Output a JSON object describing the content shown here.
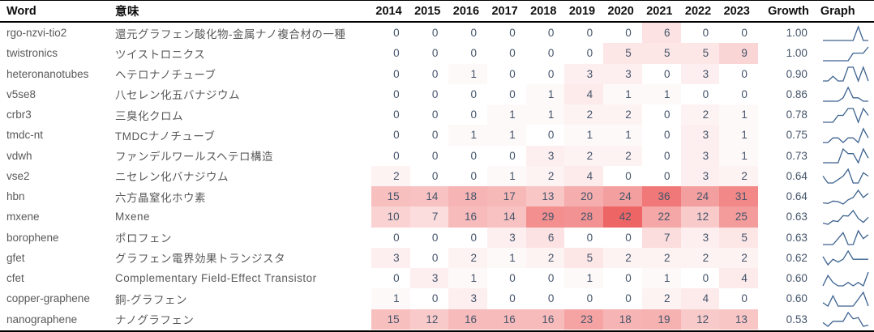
{
  "colors": {
    "heat_max_color": "#ee6565",
    "background": "#ffffff",
    "header_text": "#0f0f0f",
    "body_text": "#595959",
    "number_text": "#44546a",
    "border": "#000000",
    "sparkline": "#3d628f"
  },
  "header": {
    "word": "Word",
    "meaning": "意味",
    "growth": "Growth",
    "graph": "Graph"
  },
  "chart_data": {
    "type": "table",
    "columns": [
      "Word",
      "意味",
      "2014",
      "2015",
      "2016",
      "2017",
      "2018",
      "2019",
      "2020",
      "2021",
      "2022",
      "2023",
      "Growth",
      "Graph"
    ],
    "years": [
      "2014",
      "2015",
      "2016",
      "2017",
      "2018",
      "2019",
      "2020",
      "2021",
      "2022",
      "2023"
    ],
    "heatmap": {
      "applies_to": "year columns",
      "color_low": "#ffffff",
      "color_high": "#ee6565",
      "domain": [
        0,
        42
      ]
    },
    "sparkline_note": "Graph column shows per-row line chart of the 10 yearly values",
    "rows": [
      {
        "word": "rgo-nzvi-tio2",
        "meaning": "還元グラフェン酸化物-金属ナノ複合材の一種",
        "values": [
          0,
          0,
          0,
          0,
          0,
          0,
          0,
          6,
          0,
          0
        ],
        "growth": "1.00"
      },
      {
        "word": "twistronics",
        "meaning": "ツイストロニクス",
        "values": [
          0,
          0,
          0,
          0,
          0,
          0,
          5,
          5,
          5,
          9
        ],
        "growth": "1.00"
      },
      {
        "word": "heteronanotubes",
        "meaning": "ヘテロナノチューブ",
        "values": [
          0,
          0,
          1,
          0,
          0,
          3,
          3,
          0,
          3,
          0
        ],
        "growth": "0.90"
      },
      {
        "word": "v5se8",
        "meaning": "八セレン化五バナジウム",
        "values": [
          0,
          0,
          0,
          0,
          1,
          4,
          1,
          1,
          0,
          0
        ],
        "growth": "0.86"
      },
      {
        "word": "crbr3",
        "meaning": "三臭化クロム",
        "values": [
          0,
          0,
          0,
          1,
          1,
          2,
          2,
          0,
          2,
          1
        ],
        "growth": "0.78"
      },
      {
        "word": "tmdc-nt",
        "meaning": "TMDCナノチューブ",
        "values": [
          0,
          0,
          1,
          1,
          0,
          1,
          1,
          0,
          3,
          1
        ],
        "growth": "0.75"
      },
      {
        "word": "vdwh",
        "meaning": "ファンデルワールスヘテロ構造",
        "values": [
          0,
          0,
          0,
          0,
          3,
          2,
          2,
          0,
          3,
          1
        ],
        "growth": "0.73"
      },
      {
        "word": "vse2",
        "meaning": "ニセレン化バナジウム",
        "values": [
          2,
          0,
          0,
          1,
          2,
          4,
          0,
          0,
          3,
          2
        ],
        "growth": "0.64"
      },
      {
        "word": "hbn",
        "meaning": "六方晶窒化ホウ素",
        "values": [
          15,
          14,
          18,
          17,
          13,
          20,
          24,
          36,
          24,
          31
        ],
        "growth": "0.64"
      },
      {
        "word": "mxene",
        "meaning": "Mxene",
        "values": [
          10,
          7,
          16,
          14,
          29,
          28,
          42,
          22,
          12,
          25
        ],
        "growth": "0.63"
      },
      {
        "word": "borophene",
        "meaning": "ポロフェン",
        "values": [
          0,
          0,
          0,
          3,
          6,
          0,
          0,
          7,
          3,
          5
        ],
        "growth": "0.63"
      },
      {
        "word": "gfet",
        "meaning": "グラフェン電界効果トランジスタ",
        "values": [
          3,
          0,
          2,
          1,
          2,
          5,
          2,
          2,
          2,
          2
        ],
        "growth": "0.62"
      },
      {
        "word": "cfet",
        "meaning": "Complementary Field-Effect Transistor",
        "values": [
          0,
          3,
          1,
          0,
          0,
          1,
          0,
          1,
          0,
          4
        ],
        "growth": "0.60"
      },
      {
        "word": "copper-graphene",
        "meaning": "銅-グラフェン",
        "values": [
          1,
          0,
          3,
          0,
          0,
          0,
          0,
          2,
          4,
          0
        ],
        "growth": "0.60"
      },
      {
        "word": "nanographene",
        "meaning": "ナノグラフェン",
        "values": [
          15,
          12,
          16,
          16,
          16,
          23,
          18,
          19,
          12,
          13
        ],
        "growth": "0.53"
      }
    ]
  }
}
